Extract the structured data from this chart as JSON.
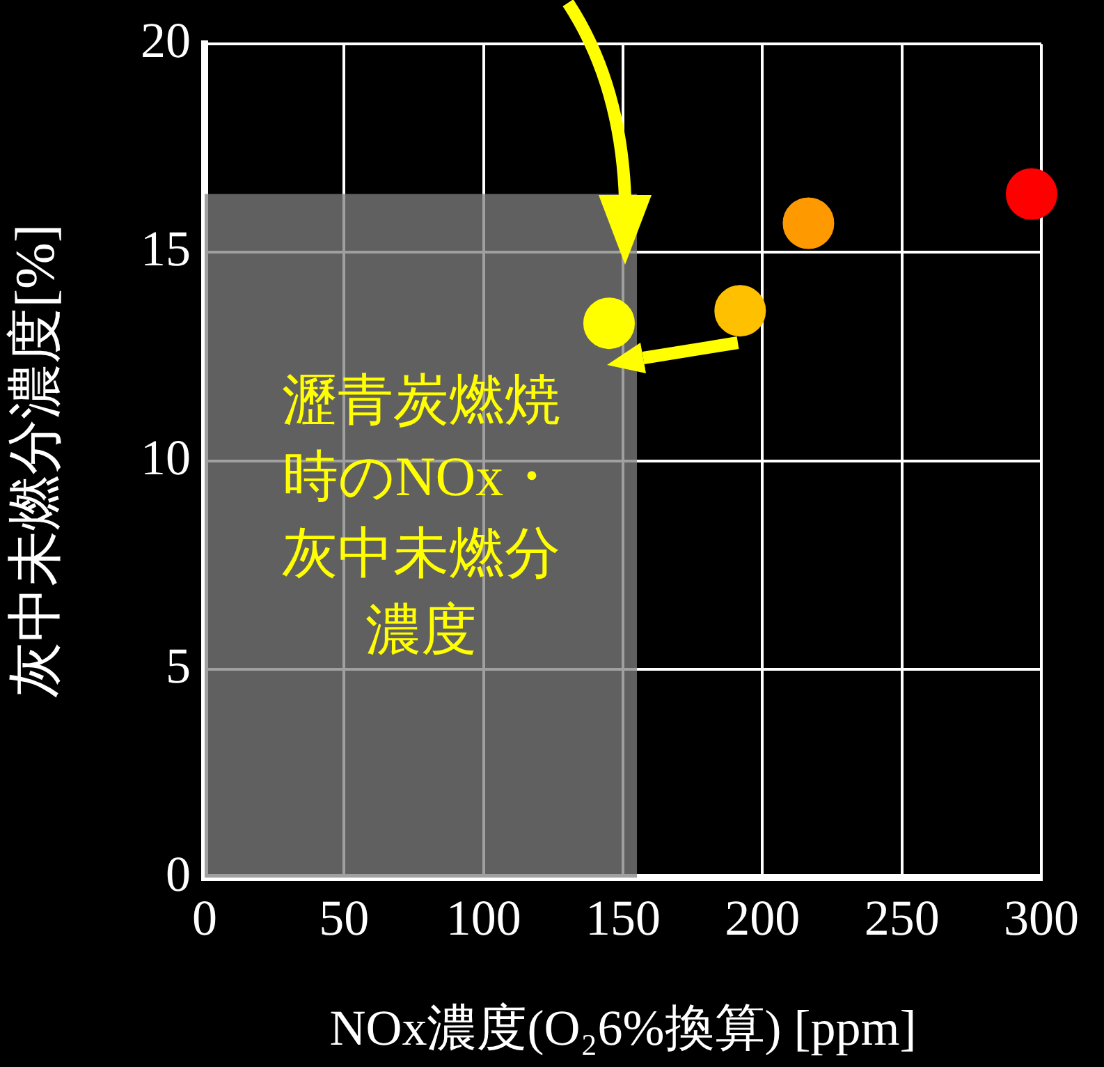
{
  "chart_data": {
    "type": "scatter",
    "xlabel": "NOx濃度(O₂6%換算) [ppm]",
    "ylabel": "灰中未燃分濃度[%]",
    "x": [
      145,
      192,
      216.5,
      296.5
    ],
    "values": [
      13.3,
      13.6,
      15.7,
      16.4
    ],
    "colors": [
      "#ffff00",
      "#ffc000",
      "#ff9900",
      "#ff0000"
    ],
    "xlim": [
      0,
      300
    ],
    "xticks": [
      0,
      50,
      100,
      150,
      200,
      250,
      300
    ],
    "ylim": [
      0,
      20
    ],
    "yticks": [
      0,
      5,
      10,
      15,
      20
    ],
    "grid": true,
    "marker": "circle",
    "bands": [
      {
        "axis": "x",
        "from": 0,
        "to": 155,
        "color": "#808080",
        "label": "瀝青炭燃焼時のNOx・灰中未燃分濃度"
      }
    ]
  }
}
